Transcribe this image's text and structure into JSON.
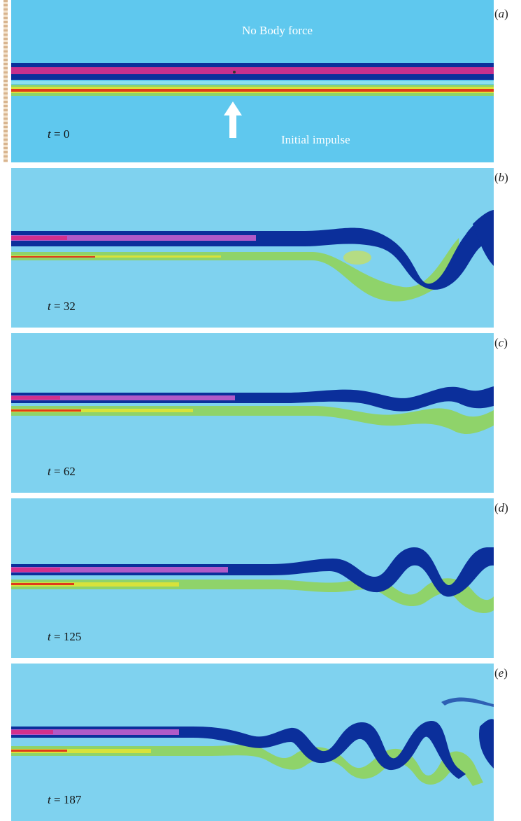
{
  "colors": {
    "background_a": "#5fc8ee",
    "background": "#7fd2ef",
    "dark_band": "#0b2f9b",
    "purple_core": "#b05ac8",
    "magenta_core": "#d2308c",
    "green_band": "#8fd36a",
    "yellow_band": "#d8e23a",
    "red_core": "#e03a1a",
    "annotation_text": "#ffffff"
  },
  "panels": [
    {
      "letter": "a",
      "time_label": "t = 0",
      "t": 0,
      "annotations": {
        "top": "No Body force",
        "bottom": "Initial impulse"
      }
    },
    {
      "letter": "b",
      "time_label": "t = 32",
      "t": 32
    },
    {
      "letter": "c",
      "time_label": "t = 62",
      "t": 62
    },
    {
      "letter": "d",
      "time_label": "t = 125",
      "t": 125
    },
    {
      "letter": "e",
      "time_label": "t = 187",
      "t": 187
    }
  ],
  "icons": {
    "impulse": "up-arrow-icon"
  }
}
